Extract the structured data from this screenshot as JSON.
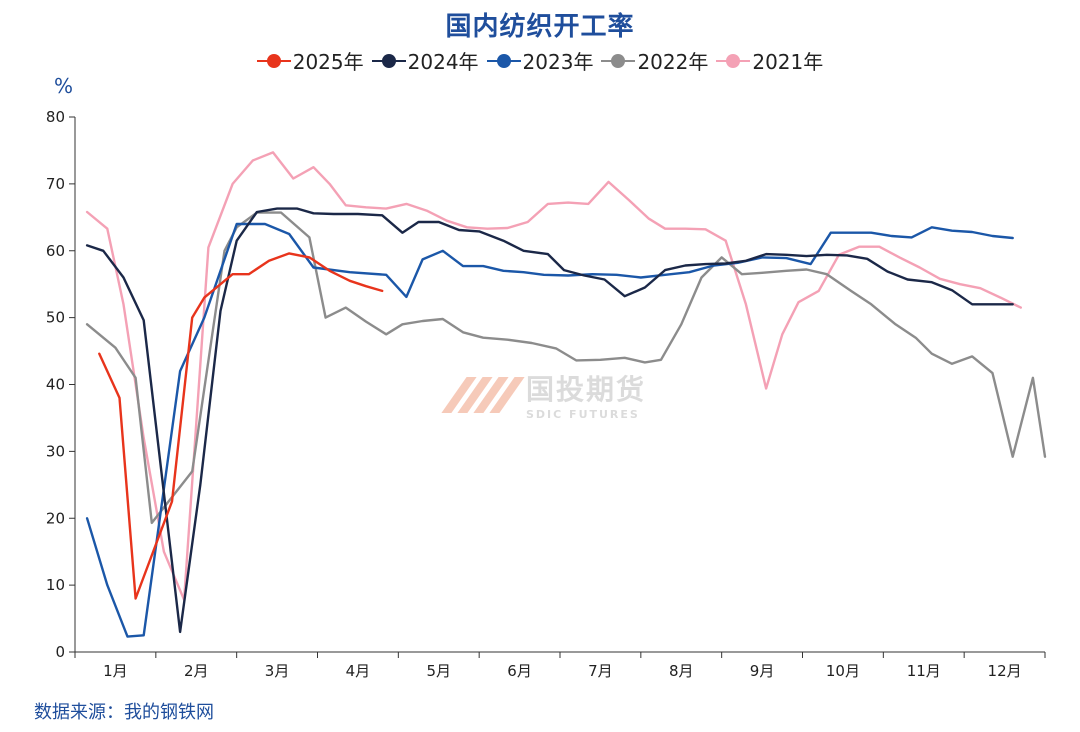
{
  "chart_data": {
    "type": "line",
    "title": "国内纺织开工率",
    "ylabel": "%",
    "ylim": [
      0,
      80
    ],
    "yticks": [
      0,
      10,
      20,
      30,
      40,
      50,
      60,
      70,
      80
    ],
    "xlim": [
      0,
      12
    ],
    "xticks": [
      "1月",
      "2月",
      "3月",
      "4月",
      "5月",
      "6月",
      "7月",
      "8月",
      "9月",
      "10月",
      "11月",
      "12月"
    ],
    "grid": false,
    "legend": "top-center",
    "series": [
      {
        "name": "2025年",
        "color": "#e8341c",
        "x": [
          0.3,
          0.55,
          0.75,
          1.2,
          1.45,
          1.6,
          1.95,
          2.15,
          2.4,
          2.65,
          2.9,
          3.15,
          3.4,
          3.6,
          3.8
        ],
        "y": [
          44.6,
          38.0,
          8.0,
          22.5,
          50.0,
          53.0,
          56.5,
          56.5,
          58.5,
          59.6,
          59.0,
          57.0,
          55.5,
          54.7,
          54.0
        ]
      },
      {
        "name": "2024年",
        "color": "#1b2848",
        "x": [
          0.15,
          0.35,
          0.6,
          0.85,
          1.3,
          1.55,
          1.8,
          2.0,
          2.25,
          2.5,
          2.75,
          2.95,
          3.2,
          3.5,
          3.8,
          4.05,
          4.25,
          4.5,
          4.75,
          5.0,
          5.3,
          5.55,
          5.85,
          6.05,
          6.3,
          6.55,
          6.8,
          7.05,
          7.3,
          7.55,
          7.8,
          8.05,
          8.3,
          8.55,
          8.8,
          9.05,
          9.3,
          9.55,
          9.8,
          10.05,
          10.3,
          10.6,
          10.85,
          11.1,
          11.35,
          11.6
        ],
        "y": [
          60.8,
          60.0,
          56.0,
          49.6,
          3.0,
          25.0,
          51.0,
          61.5,
          65.8,
          66.3,
          66.3,
          65.6,
          65.5,
          65.5,
          65.3,
          62.7,
          64.3,
          64.3,
          63.1,
          62.9,
          61.5,
          60.0,
          59.5,
          57.1,
          56.3,
          55.7,
          53.2,
          54.5,
          57.1,
          57.8,
          58.0,
          58.1,
          58.5,
          59.5,
          59.4,
          59.2,
          59.4,
          59.3,
          58.8,
          56.9,
          55.7,
          55.3,
          54.1,
          52.0,
          52.0,
          52.0
        ]
      },
      {
        "name": "2023年",
        "color": "#1b57a8",
        "x": [
          0.15,
          0.4,
          0.65,
          0.85,
          1.3,
          1.6,
          2.0,
          2.35,
          2.65,
          2.95,
          3.4,
          3.85,
          4.1,
          4.3,
          4.55,
          4.8,
          5.05,
          5.3,
          5.55,
          5.8,
          6.1,
          6.4,
          6.7,
          7.0,
          7.3,
          7.6,
          7.9,
          8.2,
          8.5,
          8.8,
          9.1,
          9.35,
          9.6,
          9.85,
          10.1,
          10.35,
          10.6,
          10.85,
          11.1,
          11.35,
          11.6
        ],
        "y": [
          20.0,
          10.0,
          2.3,
          2.5,
          42.0,
          50.0,
          64.0,
          64.0,
          62.5,
          57.5,
          56.8,
          56.4,
          53.1,
          58.7,
          60.0,
          57.7,
          57.7,
          57.0,
          56.8,
          56.4,
          56.3,
          56.5,
          56.4,
          56.0,
          56.4,
          56.8,
          57.8,
          58.2,
          59.0,
          58.9,
          58.0,
          62.7,
          62.7,
          62.7,
          62.2,
          62.0,
          63.5,
          63.0,
          62.8,
          62.2,
          61.9
        ]
      },
      {
        "name": "2022年",
        "color": "#8c8c8c",
        "x": [
          0.15,
          0.5,
          0.75,
          0.95,
          1.45,
          1.85,
          2.0,
          2.25,
          2.55,
          2.9,
          3.1,
          3.35,
          3.6,
          3.85,
          4.05,
          4.3,
          4.55,
          4.8,
          5.05,
          5.35,
          5.65,
          5.95,
          6.2,
          6.5,
          6.8,
          7.05,
          7.25,
          7.5,
          7.75,
          8.0,
          8.25,
          8.5,
          8.8,
          9.05,
          9.3,
          9.6,
          9.85,
          10.15,
          10.4,
          10.6,
          10.85,
          11.1,
          11.35,
          11.6,
          11.85,
          12.0
        ],
        "y": [
          49.0,
          45.5,
          41.0,
          19.3,
          27.0,
          60.0,
          63.5,
          65.7,
          65.7,
          62.0,
          50.0,
          51.5,
          49.4,
          47.5,
          49.0,
          49.5,
          49.8,
          47.8,
          47.0,
          46.7,
          46.2,
          45.4,
          43.6,
          43.7,
          44.0,
          43.3,
          43.7,
          49.0,
          56.0,
          59.0,
          56.5,
          56.7,
          57.0,
          57.2,
          56.5,
          54.0,
          52.0,
          49.0,
          47.0,
          44.6,
          43.1,
          44.2,
          41.7,
          29.2,
          41.0,
          29.2
        ]
      },
      {
        "name": "2021年",
        "color": "#f4a1b5",
        "x": [
          0.15,
          0.4,
          0.6,
          0.85,
          1.1,
          1.35,
          1.65,
          1.95,
          2.2,
          2.45,
          2.7,
          2.95,
          3.15,
          3.35,
          3.6,
          3.85,
          4.1,
          4.35,
          4.6,
          4.85,
          5.1,
          5.35,
          5.6,
          5.85,
          6.1,
          6.35,
          6.6,
          6.85,
          7.1,
          7.3,
          7.55,
          7.8,
          8.05,
          8.3,
          8.55,
          8.75,
          8.95,
          9.2,
          9.45,
          9.7,
          9.95,
          10.2,
          10.45,
          10.7,
          10.95,
          11.2,
          11.45,
          11.7
        ],
        "y": [
          65.8,
          63.3,
          52.0,
          32.0,
          15.0,
          7.8,
          60.5,
          70.0,
          73.5,
          74.7,
          70.8,
          72.5,
          70.0,
          66.8,
          66.5,
          66.3,
          67.0,
          66.0,
          64.5,
          63.5,
          63.3,
          63.4,
          64.3,
          67.0,
          67.2,
          67.0,
          70.3,
          67.6,
          64.8,
          63.3,
          63.3,
          63.2,
          61.5,
          52.0,
          39.4,
          47.5,
          52.3,
          54.0,
          59.4,
          60.6,
          60.6,
          59.0,
          57.5,
          55.8,
          55.0,
          54.4,
          53.0,
          51.5
        ]
      }
    ]
  },
  "source": "数据来源：我的钢铁网",
  "watermark": {
    "cn": "国投期货",
    "en": "SDIC FUTURES"
  }
}
